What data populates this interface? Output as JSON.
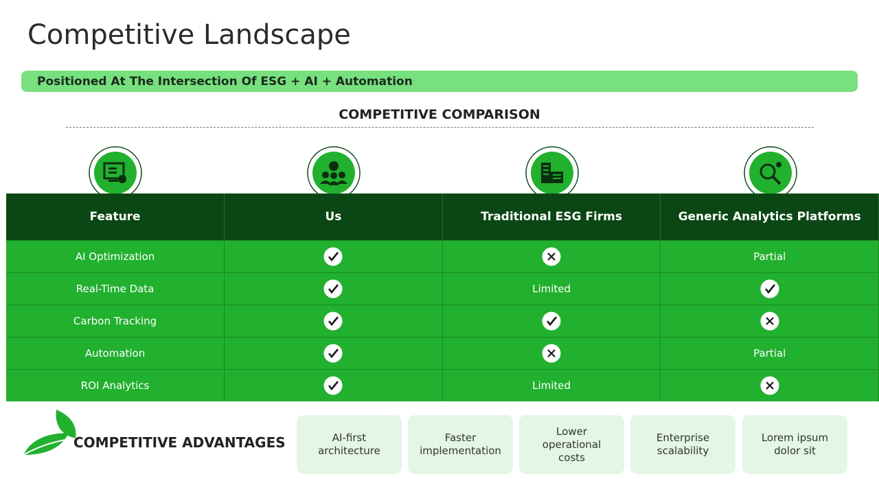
{
  "header": {
    "title": "Competitive Landscape",
    "banner": "Positioned At The Intersection Of ESG + AI + Automation"
  },
  "section_title": "COMPETITIVE COMPARISON",
  "table": {
    "headers": [
      "Feature",
      "Us",
      "Traditional ESG Firms",
      "Generic Analytics Platforms"
    ],
    "rows": [
      [
        "AI Optimization",
        true,
        false,
        "Partial"
      ],
      [
        "Real-Time Data",
        true,
        "Limited",
        true
      ],
      [
        "Carbon Tracking",
        true,
        true,
        false
      ],
      [
        "Automation",
        true,
        false,
        "Partial"
      ],
      [
        "ROI Analytics",
        true,
        "Limited",
        false
      ]
    ]
  },
  "advantages": {
    "title": "COMPETITIVE ADVANTAGES",
    "items": [
      "AI-first architecture",
      "Faster implementation",
      "Lower operational costs",
      "Enterprise scalability",
      "Lorem ipsum dolor sit"
    ]
  }
}
